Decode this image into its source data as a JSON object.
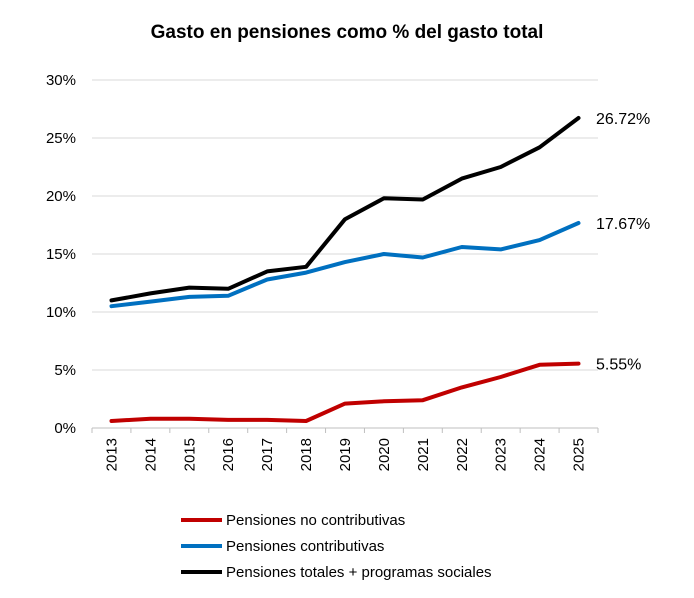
{
  "chart_data": {
    "type": "line",
    "title": "Gasto en pensiones como % del gasto total",
    "x": [
      "2013",
      "2014",
      "2015",
      "2016",
      "2017",
      "2018",
      "2019",
      "2020",
      "2021",
      "2022",
      "2023",
      "2024",
      "2025"
    ],
    "ylim": [
      0,
      30
    ],
    "yticks": [
      0,
      5,
      10,
      15,
      20,
      25,
      30
    ],
    "ytick_labels": [
      "0%",
      "5%",
      "10%",
      "15%",
      "20%",
      "25%",
      "30%"
    ],
    "grid": "horizontal",
    "legend_position": "bottom",
    "series": [
      {
        "name": "Pensiones no contributivas",
        "color": "#c00000",
        "values": [
          0.6,
          0.8,
          0.8,
          0.7,
          0.7,
          0.6,
          2.1,
          2.3,
          2.4,
          3.5,
          4.4,
          5.45,
          5.55
        ],
        "end_label": "5.55%"
      },
      {
        "name": "Pensiones contributivas",
        "color": "#0070c0",
        "values": [
          10.5,
          10.9,
          11.3,
          11.4,
          12.8,
          13.4,
          14.3,
          15.0,
          14.7,
          15.6,
          15.4,
          16.2,
          17.67
        ],
        "end_label": "17.67%"
      },
      {
        "name": "Pensiones totales + programas sociales",
        "color": "#000000",
        "values": [
          11.0,
          11.6,
          12.1,
          12.0,
          13.5,
          13.9,
          18.0,
          19.8,
          19.7,
          21.5,
          22.5,
          24.2,
          26.72
        ],
        "end_label": "26.72%"
      }
    ]
  }
}
